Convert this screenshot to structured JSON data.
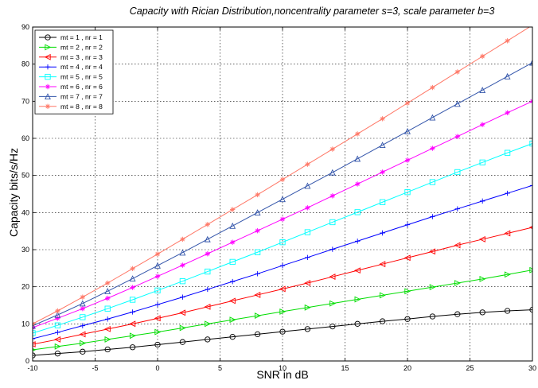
{
  "chart_data": {
    "type": "line",
    "title": "Capacity with Rician Distribution,noncentrality parameter s=3, scale parameter b=3",
    "xlabel": "SNR in dB",
    "ylabel": "Capacity bits/s/Hz",
    "xlim": [
      -10,
      30
    ],
    "ylim": [
      0,
      90
    ],
    "xticks": [
      -10,
      -5,
      0,
      5,
      10,
      15,
      20,
      25,
      30
    ],
    "yticks": [
      0,
      10,
      20,
      30,
      40,
      50,
      60,
      70,
      80,
      90
    ],
    "grid": true,
    "grid_style": "dotted",
    "legend_position": "top-left",
    "x": [
      -10,
      -8,
      -6,
      -4,
      -2,
      0,
      2,
      4,
      6,
      8,
      10,
      12,
      14,
      16,
      18,
      20,
      22,
      24,
      26,
      28,
      30
    ],
    "series": [
      {
        "name": "mt = 1 , nr = 1",
        "color": "#000000",
        "marker": "circle",
        "values": [
          1.5,
          2.0,
          2.5,
          3.1,
          3.7,
          4.4,
          5.1,
          5.8,
          6.5,
          7.2,
          7.9,
          8.6,
          9.3,
          10.0,
          10.7,
          11.3,
          12.0,
          12.6,
          13.1,
          13.5,
          13.8
        ]
      },
      {
        "name": "mt = 2 , nr = 2",
        "color": "#00dd00",
        "marker": "triangle-right",
        "values": [
          3.0,
          3.9,
          4.8,
          5.8,
          6.8,
          7.8,
          8.9,
          10.0,
          11.1,
          12.2,
          13.3,
          14.4,
          15.5,
          16.6,
          17.7,
          18.8,
          19.9,
          21.0,
          22.1,
          23.3,
          24.5
        ]
      },
      {
        "name": "mt = 3 , nr = 3",
        "color": "#ff0000",
        "marker": "triangle-left",
        "values": [
          4.5,
          5.8,
          7.2,
          8.6,
          10.0,
          11.5,
          13.0,
          14.6,
          16.2,
          17.8,
          19.4,
          21.0,
          22.7,
          24.4,
          26.1,
          27.8,
          29.5,
          31.2,
          32.8,
          34.4,
          36.0
        ]
      },
      {
        "name": "mt = 4 , nr = 4",
        "color": "#0000ff",
        "marker": "plus",
        "values": [
          6.0,
          7.7,
          9.5,
          11.3,
          13.2,
          15.2,
          17.2,
          19.3,
          21.4,
          23.5,
          25.7,
          27.9,
          30.1,
          32.3,
          34.5,
          36.7,
          38.9,
          41.0,
          43.1,
          45.2,
          47.3
        ]
      },
      {
        "name": "mt = 5 , nr = 5",
        "color": "#00ffff",
        "marker": "square",
        "values": [
          7.5,
          9.6,
          11.8,
          14.1,
          16.5,
          19.0,
          21.5,
          24.1,
          26.7,
          29.3,
          32.0,
          34.7,
          37.4,
          40.1,
          42.8,
          45.5,
          48.2,
          50.9,
          53.5,
          56.1,
          58.6
        ]
      },
      {
        "name": "mt = 6 , nr = 6",
        "color": "#ff00ff",
        "marker": "star",
        "values": [
          9.0,
          11.5,
          14.1,
          16.9,
          19.8,
          22.8,
          25.8,
          28.9,
          32.0,
          35.1,
          38.2,
          41.3,
          44.5,
          47.7,
          50.9,
          54.1,
          57.3,
          60.5,
          63.7,
          66.9,
          70.0
        ]
      },
      {
        "name": "mt = 7 , nr = 7",
        "color": "#3355aa",
        "marker": "triangle-up",
        "values": [
          9.5,
          12.4,
          15.5,
          18.8,
          22.2,
          25.7,
          29.2,
          32.8,
          36.4,
          40.0,
          43.6,
          47.2,
          50.8,
          54.5,
          58.2,
          61.9,
          65.6,
          69.3,
          73.0,
          76.7,
          80.4
        ]
      },
      {
        "name": "mt = 8 , nr = 8",
        "color": "#ff7766",
        "marker": "asterisk",
        "values": [
          10.0,
          13.5,
          17.2,
          21.0,
          24.9,
          28.8,
          32.8,
          36.8,
          40.8,
          44.8,
          48.9,
          53.0,
          57.1,
          61.2,
          65.3,
          69.5,
          73.7,
          77.9,
          82.1,
          86.3,
          90.5
        ]
      }
    ]
  }
}
